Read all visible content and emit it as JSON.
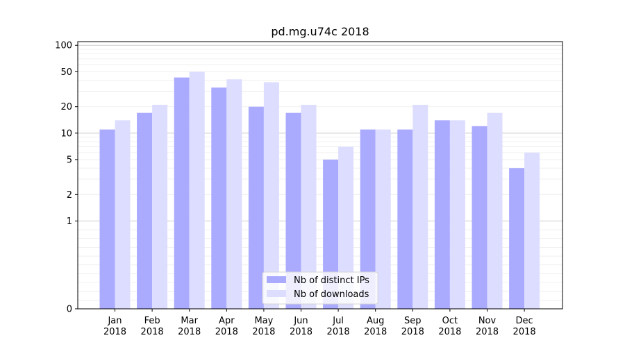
{
  "chart_data": {
    "type": "bar",
    "title": "pd.mg.u74c 2018",
    "xlabel": "",
    "ylabel": "",
    "yscale": "symlog",
    "ylim": [
      0,
      110
    ],
    "yticks": [
      0,
      1,
      2,
      5,
      10,
      20,
      50,
      100
    ],
    "ytick_labels": [
      "0",
      "1",
      "2",
      "5",
      "10",
      "20",
      "50",
      "100"
    ],
    "categories": [
      "Jan\n2018",
      "Feb\n2018",
      "Mar\n2018",
      "Apr\n2018",
      "May\n2018",
      "Jun\n2018",
      "Jul\n2018",
      "Aug\n2018",
      "Sep\n2018",
      "Oct\n2018",
      "Nov\n2018",
      "Dec\n2018"
    ],
    "series": [
      {
        "name": "Nb of distinct IPs",
        "color": "#aaaaff",
        "values": [
          11,
          17,
          43,
          33,
          20,
          17,
          5,
          11,
          11,
          14,
          12,
          4
        ]
      },
      {
        "name": "Nb of downloads",
        "color": "#ddddff",
        "values": [
          14,
          21,
          50,
          41,
          38,
          21,
          7,
          11,
          21,
          14,
          17,
          6
        ]
      }
    ],
    "grid": "y (major and minor)",
    "legend": "lower center"
  }
}
